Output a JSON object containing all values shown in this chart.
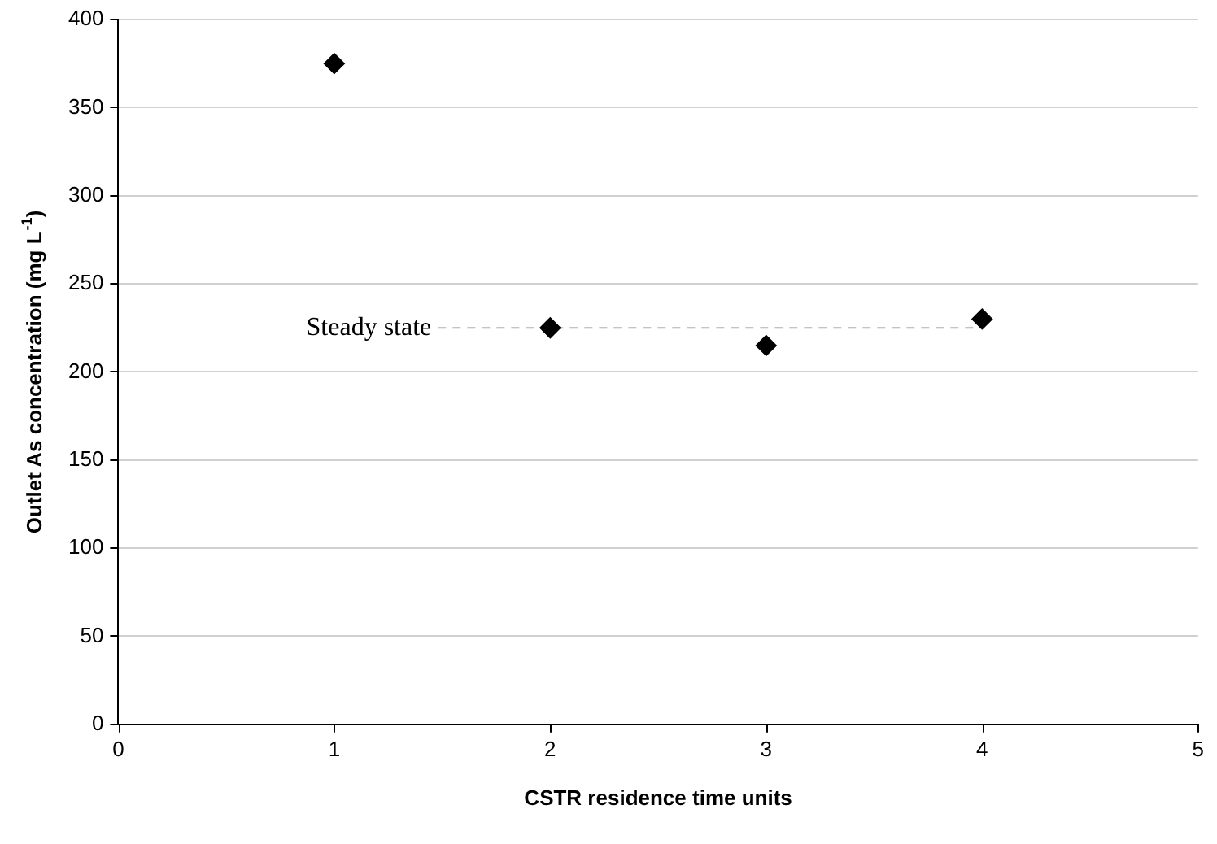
{
  "chart_data": {
    "type": "scatter",
    "xlabel": "CSTR residence time units",
    "ylabel": "Outlet As concentration (mg L$^{-1}$)",
    "x": [
      1,
      2,
      3,
      4
    ],
    "series": [
      {
        "color": "#000000",
        "values": [
          375,
          225,
          215,
          230
        ]
      }
    ],
    "xlim": [
      0,
      5
    ],
    "xticks": [
      0,
      1,
      2,
      3,
      4,
      5
    ],
    "ylim": [
      0,
      400
    ],
    "yticks": [
      0,
      50,
      100,
      150,
      200,
      250,
      300,
      350,
      400
    ],
    "grid": "y",
    "legend": false,
    "marker": "diamond",
    "ref_lines": [
      {
        "axis": "y",
        "value": 225,
        "label": "Steady state",
        "color": "#b0b0b0",
        "line_style": "dashed"
      }
    ]
  }
}
